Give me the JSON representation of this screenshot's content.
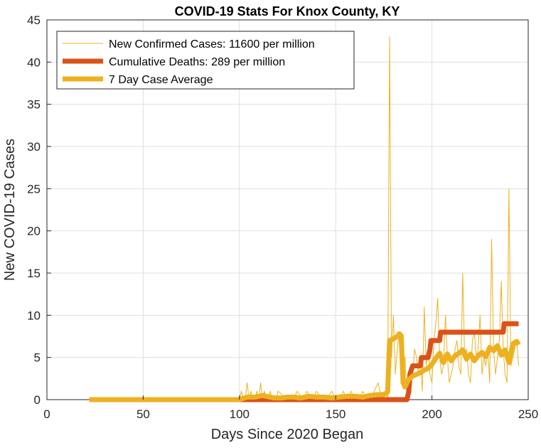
{
  "chart_data": {
    "type": "line",
    "title": "COVID-19 Stats For Knox County, KY",
    "xlabel": "Days Since 2020 Began",
    "ylabel": "New COVID-19 Cases",
    "xlim": [
      0,
      250
    ],
    "ylim": [
      0,
      45
    ],
    "xticks": [
      0,
      50,
      100,
      150,
      200,
      250
    ],
    "yticks": [
      0,
      5,
      10,
      15,
      20,
      25,
      30,
      35,
      40,
      45
    ],
    "grid": true,
    "legend_position": "top-left",
    "series": [
      {
        "name": "New Confirmed Cases: 11600 per million",
        "color": "#EDB120",
        "line_width": "thin",
        "x": [
          22,
          100,
          101,
          102,
          103,
          104,
          105,
          106,
          107,
          108,
          109,
          110,
          111,
          112,
          113,
          114,
          115,
          116,
          117,
          118,
          119,
          120,
          125,
          128,
          130,
          133,
          135,
          138,
          140,
          143,
          145,
          148,
          150,
          152,
          154,
          156,
          158,
          160,
          162,
          164,
          166,
          168,
          170,
          172,
          174,
          176,
          177,
          178,
          179,
          180,
          181,
          182,
          183,
          184,
          185,
          186,
          187,
          188,
          189,
          190,
          191,
          192,
          193,
          194,
          195,
          196,
          197,
          198,
          199,
          200,
          201,
          202,
          203,
          204,
          205,
          206,
          207,
          208,
          209,
          210,
          211,
          212,
          213,
          214,
          215,
          216,
          217,
          218,
          219,
          220,
          221,
          222,
          223,
          224,
          225,
          226,
          227,
          228,
          229,
          230,
          231,
          232,
          233,
          234,
          235,
          236,
          237,
          238,
          239,
          240,
          241,
          242,
          243,
          244,
          245
        ],
        "y": [
          0,
          0,
          1,
          0,
          0,
          2,
          0,
          1,
          0,
          0,
          1,
          0,
          2,
          0,
          1,
          0,
          0,
          1,
          0,
          0,
          0,
          1,
          0,
          0,
          1,
          0,
          1,
          0,
          1,
          0,
          0,
          1,
          0,
          0,
          1,
          0,
          1,
          0,
          0,
          1,
          0,
          0,
          1,
          2,
          0,
          1,
          0,
          43,
          5,
          10,
          3,
          6,
          8,
          2,
          4,
          5,
          0,
          2,
          1,
          3,
          6,
          5,
          3,
          5,
          1,
          11,
          4,
          6,
          3,
          2,
          7,
          9,
          12,
          5,
          3,
          4,
          10,
          5,
          2,
          3,
          4,
          6,
          7,
          4,
          3,
          15,
          5,
          6,
          3,
          2,
          7,
          8,
          5,
          6,
          10,
          3,
          5,
          4,
          6,
          2,
          19,
          6,
          3,
          5,
          7,
          14,
          6,
          3,
          2,
          25,
          4,
          5,
          6,
          7,
          4
        ],
        "values": [
          0,
          0,
          1,
          0,
          0,
          2,
          0,
          1,
          0,
          0,
          1,
          0,
          2,
          0,
          1,
          0,
          0,
          1,
          0,
          0,
          0,
          1,
          0,
          0,
          1,
          0,
          1,
          0,
          1,
          0,
          0,
          1,
          0,
          0,
          1,
          0,
          1,
          0,
          0,
          1,
          0,
          0,
          1,
          2,
          0,
          1,
          0,
          43,
          5,
          10,
          3,
          6,
          8,
          2,
          4,
          5,
          0,
          2,
          1,
          3,
          6,
          5,
          3,
          5,
          1,
          11,
          4,
          6,
          3,
          2,
          7,
          9,
          12,
          5,
          3,
          4,
          10,
          5,
          2,
          3,
          4,
          6,
          7,
          4,
          3,
          15,
          5,
          6,
          3,
          2,
          7,
          8,
          5,
          6,
          10,
          3,
          5,
          4,
          6,
          2,
          19,
          6,
          3,
          5,
          7,
          14,
          6,
          3,
          2,
          25,
          4,
          5,
          6,
          7,
          4
        ]
      },
      {
        "name": "Cumulative Deaths: 289 per million",
        "color": "#D95319",
        "line_width": "thick",
        "x": [
          22,
          187,
          188,
          188.5,
          190,
          194,
          194.5,
          198,
          199,
          199.5,
          203,
          204,
          204.5,
          236,
          237,
          237.5,
          245
        ],
        "y": [
          0,
          0,
          1,
          3,
          4,
          4,
          5,
          5,
          6,
          7,
          7,
          7,
          8,
          8,
          8,
          9,
          9
        ],
        "values": [
          0,
          0,
          1,
          3,
          4,
          4,
          5,
          5,
          6,
          7,
          7,
          7,
          8,
          8,
          8,
          9,
          9
        ]
      },
      {
        "name": "7 Day Case Average",
        "color": "#EDB120",
        "line_width": "thick",
        "x": [
          22,
          100,
          104,
          108,
          110,
          112,
          114,
          118,
          122,
          125,
          128,
          132,
          136,
          140,
          144,
          148,
          152,
          156,
          160,
          164,
          168,
          172,
          175,
          177,
          178,
          180,
          182,
          183,
          184,
          185,
          186,
          187,
          188,
          189,
          190,
          192,
          194,
          196,
          198,
          200,
          202,
          204,
          206,
          208,
          210,
          212,
          214,
          216,
          218,
          220,
          222,
          224,
          226,
          228,
          230,
          232,
          234,
          236,
          238,
          240,
          242,
          244,
          245
        ],
        "y": [
          0,
          0,
          0.3,
          0.3,
          0.4,
          0.5,
          0.4,
          0.2,
          0.2,
          0.3,
          0.3,
          0.2,
          0.4,
          0.3,
          0.3,
          0.2,
          0.3,
          0.4,
          0.4,
          0.3,
          0.5,
          0.6,
          0.6,
          0.9,
          7,
          7.2,
          7.5,
          7.8,
          7.6,
          2,
          1.5,
          2,
          2.4,
          2.6,
          2.8,
          3,
          3.2,
          3.5,
          3.7,
          4.2,
          4.9,
          5.5,
          4.4,
          5.4,
          4.6,
          5.2,
          5.5,
          5.9,
          4.8,
          5.4,
          4.6,
          5.2,
          5.6,
          5.1,
          6.2,
          5.8,
          6.4,
          5.3,
          5.9,
          4.4,
          6.6,
          6.9,
          6.5
        ],
        "values": [
          0,
          0,
          0.3,
          0.3,
          0.4,
          0.5,
          0.4,
          0.2,
          0.2,
          0.3,
          0.3,
          0.2,
          0.4,
          0.3,
          0.3,
          0.2,
          0.3,
          0.4,
          0.4,
          0.3,
          0.5,
          0.6,
          0.6,
          0.9,
          7,
          7.2,
          7.5,
          7.8,
          7.6,
          2,
          1.5,
          2,
          2.4,
          2.6,
          2.8,
          3,
          3.2,
          3.5,
          3.7,
          4.2,
          4.9,
          5.5,
          4.4,
          5.4,
          4.6,
          5.2,
          5.5,
          5.9,
          4.8,
          5.4,
          4.6,
          5.2,
          5.6,
          5.1,
          6.2,
          5.8,
          6.4,
          5.3,
          5.9,
          4.4,
          6.6,
          6.9,
          6.5
        ]
      }
    ]
  }
}
